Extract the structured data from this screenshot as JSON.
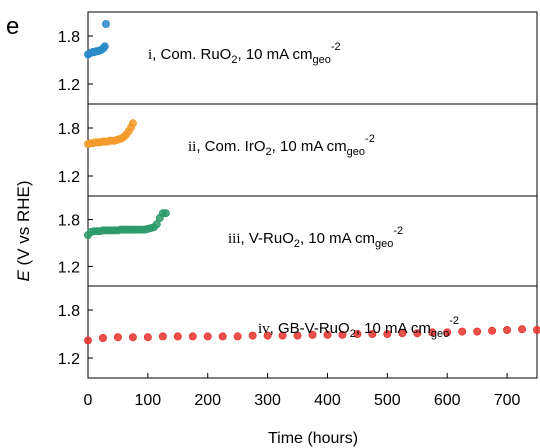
{
  "panel_label": "e",
  "chart_data": {
    "type": "scatter",
    "xlabel": "Time (hours)",
    "ylabel": {
      "symbol": "E",
      "rest": " (V vs RHE)"
    },
    "xlim": [
      0,
      750
    ],
    "x_ticks": [
      "0",
      "100",
      "200",
      "300",
      "400",
      "500",
      "600",
      "700"
    ],
    "ylim": [
      0.95,
      2.1
    ],
    "y_ticks": [
      "1.2",
      "1.8"
    ],
    "grid": false,
    "panels": [
      {
        "roman": "i",
        "label": {
          "pre": ", Com. RuO",
          "sub1": "2",
          "mid": ", 10 mA cm",
          "sub2": "geo",
          "sup": "-2"
        },
        "color": "#2a8ac6",
        "x": [
          0,
          2,
          5,
          8,
          11,
          14,
          17,
          20,
          23,
          26,
          28,
          30
        ],
        "y": [
          1.57,
          1.58,
          1.59,
          1.6,
          1.6,
          1.61,
          1.61,
          1.62,
          1.63,
          1.65,
          1.67,
          1.95
        ]
      },
      {
        "roman": "ii",
        "label": {
          "pre": ", Com. IrO",
          "sub1": "2",
          "mid": ", 10 mA cm",
          "sub2": "geo",
          "sup": "-2"
        },
        "color": "#f39a2b",
        "x": [
          0,
          4,
          8,
          12,
          16,
          20,
          24,
          28,
          32,
          36,
          40,
          44,
          48,
          52,
          56,
          60,
          64,
          68,
          72,
          75
        ],
        "y": [
          1.6,
          1.61,
          1.61,
          1.62,
          1.62,
          1.62,
          1.63,
          1.63,
          1.63,
          1.64,
          1.64,
          1.64,
          1.65,
          1.66,
          1.67,
          1.69,
          1.72,
          1.76,
          1.81,
          1.86
        ]
      },
      {
        "roman": "iii",
        "label": {
          "pre": ", V-RuO",
          "sub1": "2",
          "mid": ", 10 mA cm",
          "sub2": "geo",
          "sup": "-2"
        },
        "color": "#2b9a6a",
        "x": [
          0,
          5,
          10,
          15,
          20,
          25,
          30,
          35,
          40,
          45,
          50,
          55,
          60,
          65,
          70,
          75,
          80,
          85,
          90,
          95,
          100,
          105,
          110,
          115,
          120,
          125,
          130
        ],
        "y": [
          1.6,
          1.64,
          1.65,
          1.65,
          1.65,
          1.66,
          1.66,
          1.66,
          1.66,
          1.66,
          1.66,
          1.67,
          1.67,
          1.67,
          1.67,
          1.67,
          1.67,
          1.67,
          1.67,
          1.67,
          1.68,
          1.69,
          1.7,
          1.74,
          1.82,
          1.88,
          1.88
        ]
      },
      {
        "roman": "iv",
        "label": {
          "pre": ", GB-V-RuO",
          "sub1": "2",
          "mid": ", 10 mA cm",
          "sub2": "geo",
          "sup": "-2"
        },
        "color": "#e8322d",
        "x": [
          0,
          25,
          50,
          75,
          100,
          125,
          150,
          175,
          200,
          225,
          250,
          275,
          300,
          325,
          350,
          375,
          400,
          425,
          450,
          475,
          500,
          525,
          550,
          575,
          600,
          625,
          650,
          675,
          700,
          725,
          750
        ],
        "y": [
          1.42,
          1.45,
          1.46,
          1.46,
          1.46,
          1.47,
          1.47,
          1.47,
          1.47,
          1.47,
          1.47,
          1.48,
          1.48,
          1.48,
          1.48,
          1.49,
          1.49,
          1.49,
          1.5,
          1.5,
          1.5,
          1.51,
          1.51,
          1.52,
          1.52,
          1.53,
          1.53,
          1.54,
          1.55,
          1.56,
          1.55
        ]
      }
    ]
  }
}
